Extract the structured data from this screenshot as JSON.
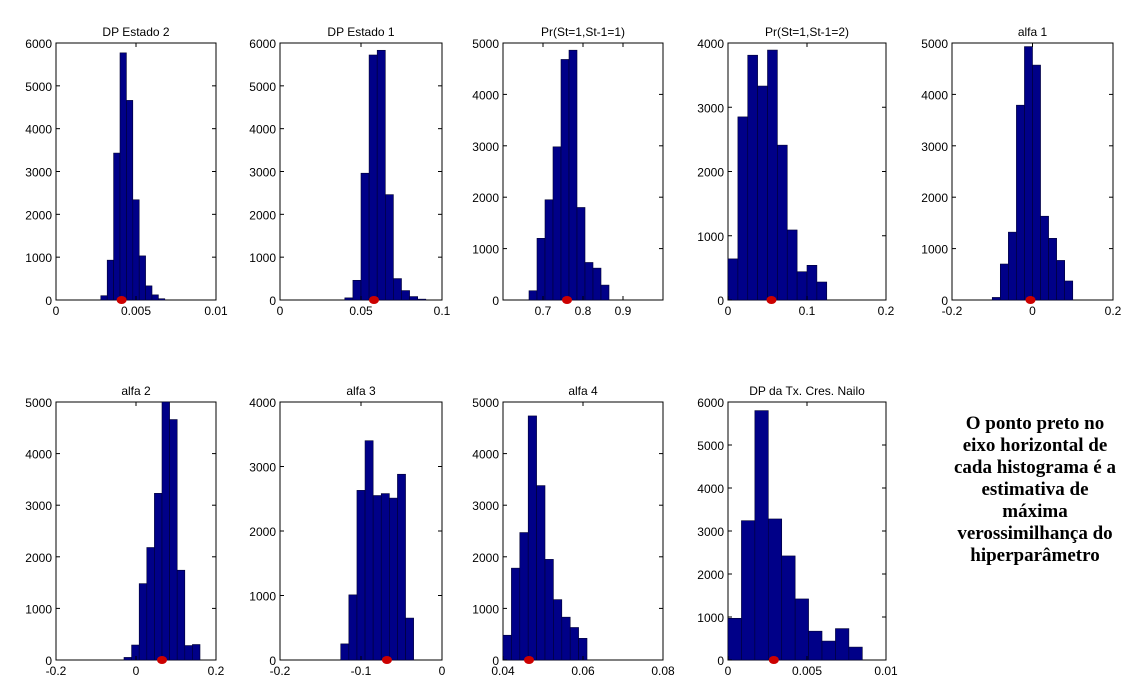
{
  "chart_data": [
    {
      "type": "bar",
      "title": "DP Estado 2",
      "xlim": [
        0,
        0.01
      ],
      "ylim": [
        0,
        6000
      ],
      "xticks": [
        0,
        0.005,
        0.01
      ],
      "xtick_labels": [
        "0",
        "0.005",
        "0.01"
      ],
      "yticks": [
        0,
        1000,
        2000,
        3000,
        4000,
        5000,
        6000
      ],
      "ytick_labels": [
        "0",
        "1000",
        "2000",
        "3000",
        "4000",
        "5000",
        "6000"
      ],
      "bin_edges": [
        0.0028,
        0.0032,
        0.0036,
        0.004,
        0.0044,
        0.0048,
        0.0052,
        0.0056,
        0.006,
        0.0064,
        0.0068
      ],
      "values": [
        100,
        930,
        3430,
        5770,
        4660,
        2340,
        1030,
        330,
        120,
        30
      ],
      "marker": 0.0041,
      "marker_color": "#cc0000"
    },
    {
      "type": "bar",
      "title": "DP Estado 1",
      "xlim": [
        0,
        0.1
      ],
      "ylim": [
        0,
        6000
      ],
      "xticks": [
        0,
        0.05,
        0.1
      ],
      "xtick_labels": [
        "0",
        "0.05",
        "0.1"
      ],
      "yticks": [
        0,
        1000,
        2000,
        3000,
        4000,
        5000,
        6000
      ],
      "ytick_labels": [
        "0",
        "1000",
        "2000",
        "3000",
        "4000",
        "5000",
        "6000"
      ],
      "bin_edges": [
        0.04,
        0.045,
        0.05,
        0.055,
        0.06,
        0.065,
        0.07,
        0.075,
        0.08,
        0.085,
        0.09
      ],
      "values": [
        50,
        460,
        2960,
        5720,
        5830,
        2460,
        500,
        220,
        80,
        20
      ],
      "marker": 0.058,
      "marker_color": "#cc0000"
    },
    {
      "type": "bar",
      "title": "Pr(St=1,St-1=1)",
      "xlim": [
        0.6,
        1.0
      ],
      "ylim": [
        0,
        5000
      ],
      "xticks": [
        0.7,
        0.8,
        0.9
      ],
      "xtick_labels": [
        "0.7",
        "0.8",
        "0.9"
      ],
      "yticks": [
        0,
        1000,
        2000,
        3000,
        4000,
        5000
      ],
      "ytick_labels": [
        "0",
        "1000",
        "2000",
        "3000",
        "4000",
        "5000"
      ],
      "bin_edges": [
        0.665,
        0.685,
        0.705,
        0.725,
        0.745,
        0.765,
        0.785,
        0.805,
        0.825,
        0.845,
        0.865
      ],
      "values": [
        180,
        1200,
        1950,
        2980,
        4680,
        4860,
        1800,
        730,
        620,
        290
      ],
      "marker": 0.76,
      "marker_color": "#cc0000"
    },
    {
      "type": "bar",
      "title": "Pr(St=1,St-1=2)",
      "xlim": [
        0,
        0.2
      ],
      "ylim": [
        0,
        4000
      ],
      "xticks": [
        0,
        0.1,
        0.2
      ],
      "xtick_labels": [
        "0",
        "0.1",
        "0.2"
      ],
      "yticks": [
        0,
        1000,
        2000,
        3000,
        4000
      ],
      "ytick_labels": [
        "0",
        "1000",
        "2000",
        "3000",
        "4000"
      ],
      "bin_edges": [
        0.0,
        0.0125,
        0.025,
        0.0375,
        0.05,
        0.0625,
        0.075,
        0.0875,
        0.1,
        0.1125,
        0.125
      ],
      "values": [
        640,
        2850,
        3810,
        3330,
        3890,
        2410,
        1090,
        440,
        540,
        280
      ],
      "marker": 0.055,
      "marker_color": "#cc0000"
    },
    {
      "type": "bar",
      "title": "alfa 1",
      "xlim": [
        -0.2,
        0.2
      ],
      "ylim": [
        0,
        5000
      ],
      "xticks": [
        -0.2,
        0,
        0.2
      ],
      "xtick_labels": [
        "-0.2",
        "0",
        "0.2"
      ],
      "yticks": [
        0,
        1000,
        2000,
        3000,
        4000,
        5000
      ],
      "ytick_labels": [
        "0",
        "1000",
        "2000",
        "3000",
        "4000",
        "5000"
      ],
      "bin_edges": [
        -0.1,
        -0.08,
        -0.06,
        -0.04,
        -0.02,
        0.0,
        0.02,
        0.04,
        0.06,
        0.08,
        0.1
      ],
      "values": [
        50,
        700,
        1320,
        3790,
        4930,
        4570,
        1630,
        1200,
        770,
        370
      ],
      "marker": -0.005,
      "marker_color": "#cc0000"
    },
    {
      "type": "bar",
      "title": "alfa 2",
      "xlim": [
        -0.2,
        0.2
      ],
      "ylim": [
        0,
        5000
      ],
      "xticks": [
        -0.2,
        0,
        0.2
      ],
      "xtick_labels": [
        "-0.2",
        "0",
        "0.2"
      ],
      "yticks": [
        0,
        1000,
        2000,
        3000,
        4000,
        5000
      ],
      "ytick_labels": [
        "0",
        "1000",
        "2000",
        "3000",
        "4000",
        "5000"
      ],
      "bin_edges": [
        -0.03,
        -0.011,
        0.008,
        0.027,
        0.046,
        0.065,
        0.084,
        0.103,
        0.122,
        0.141,
        0.16
      ],
      "values": [
        50,
        290,
        1480,
        2180,
        3230,
        5000,
        4660,
        1740,
        280,
        300
      ],
      "marker": 0.065,
      "marker_color": "#cc0000"
    },
    {
      "type": "bar",
      "title": "alfa 3",
      "xlim": [
        -0.2,
        0.0
      ],
      "ylim": [
        0,
        4000
      ],
      "xticks": [
        -0.2,
        -0.1,
        0
      ],
      "xtick_labels": [
        "-0.2",
        "-0.1",
        "0"
      ],
      "yticks": [
        0,
        1000,
        2000,
        3000,
        4000
      ],
      "ytick_labels": [
        "0",
        "1000",
        "2000",
        "3000",
        "4000"
      ],
      "bin_edges": [
        -0.125,
        -0.115,
        -0.105,
        -0.095,
        -0.085,
        -0.075,
        -0.065,
        -0.055,
        -0.045,
        -0.035
      ],
      "values": [
        250,
        1010,
        2630,
        3400,
        2550,
        2580,
        2510,
        2880,
        650
      ],
      "marker": -0.068,
      "marker_color": "#cc0000"
    },
    {
      "type": "bar",
      "title": "alfa 4",
      "xlim": [
        0.04,
        0.08
      ],
      "ylim": [
        0,
        5000
      ],
      "xticks": [
        0.04,
        0.06,
        0.08
      ],
      "xtick_labels": [
        "0.04",
        "0.06",
        "0.08"
      ],
      "yticks": [
        0,
        1000,
        2000,
        3000,
        4000,
        5000
      ],
      "ytick_labels": [
        "0",
        "1000",
        "2000",
        "3000",
        "4000",
        "5000"
      ],
      "bin_edges": [
        0.04,
        0.0421,
        0.0442,
        0.0463,
        0.0484,
        0.0505,
        0.0526,
        0.0547,
        0.0568,
        0.0589,
        0.061
      ],
      "values": [
        480,
        1780,
        2470,
        4730,
        3380,
        1950,
        1170,
        830,
        630,
        420
      ],
      "marker": 0.0465,
      "marker_color": "#cc0000"
    },
    {
      "type": "bar",
      "title": "DP da Tx. Cres. Nailo",
      "xlim": [
        0,
        0.01
      ],
      "ylim": [
        0,
        6000
      ],
      "xticks": [
        0,
        0.005,
        0.01
      ],
      "xtick_labels": [
        "0",
        "0.005",
        "0.01"
      ],
      "yticks": [
        0,
        1000,
        2000,
        3000,
        4000,
        5000,
        6000
      ],
      "ytick_labels": [
        "0",
        "1000",
        "2000",
        "3000",
        "4000",
        "5000",
        "6000"
      ],
      "bin_edges": [
        0.0,
        0.00085,
        0.0017,
        0.00255,
        0.0034,
        0.00425,
        0.0051,
        0.00595,
        0.0068,
        0.00765,
        0.0085
      ],
      "values": [
        970,
        3240,
        5800,
        3280,
        2420,
        1420,
        670,
        440,
        730,
        300
      ],
      "marker": 0.0029,
      "marker_color": "#cc0000"
    }
  ],
  "annotation": {
    "text": "O ponto preto no\neixo horizontal de\ncada histograma é a\nestimativa de\nmáxima\nverossimilhança do\nhiperparâmetro"
  },
  "colors": {
    "bar_fill": "#000088",
    "bar_edge": "#000033",
    "marker": "#cc0000",
    "axes": "#000000"
  }
}
